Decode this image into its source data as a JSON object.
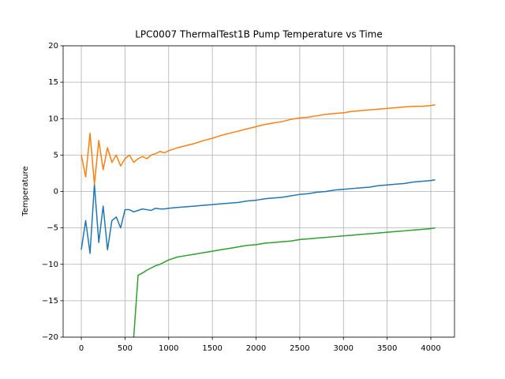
{
  "chart_data": {
    "type": "line",
    "title": "LPC0007 ThermalTest1B Pump Temperature vs Time",
    "y_label": "Temperature",
    "x": [
      0,
      50,
      100,
      150,
      200,
      250,
      300,
      350,
      400,
      450,
      500,
      550,
      600,
      650,
      700,
      750,
      800,
      850,
      900,
      950,
      1000,
      1100,
      1200,
      1300,
      1400,
      1500,
      1600,
      1700,
      1800,
      1900,
      2000,
      2100,
      2200,
      2300,
      2400,
      2500,
      2600,
      2700,
      2800,
      2900,
      3000,
      3100,
      3200,
      3300,
      3400,
      3500,
      3600,
      3700,
      3800,
      3900,
      4000,
      4050
    ],
    "series": [
      {
        "color": "#1f77b4",
        "values": [
          -8,
          -4,
          -8.5,
          1,
          -7,
          -2,
          -8,
          -4,
          -3.5,
          -5,
          -2.5,
          -2.5,
          -2.8,
          -2.6,
          -2.4,
          -2.5,
          -2.6,
          -2.3,
          -2.4,
          -2.4,
          -2.3,
          -2.2,
          -2.1,
          -2.0,
          -1.9,
          -1.8,
          -1.7,
          -1.6,
          -1.5,
          -1.3,
          -1.2,
          -1.0,
          -0.9,
          -0.8,
          -0.6,
          -0.4,
          -0.3,
          -0.1,
          0.0,
          0.2,
          0.3,
          0.4,
          0.5,
          0.6,
          0.8,
          0.9,
          1.0,
          1.1,
          1.3,
          1.4,
          1.5,
          1.6
        ]
      },
      {
        "color": "#ff7f0e",
        "values": [
          5,
          2,
          8,
          1,
          7,
          3,
          6,
          4,
          5,
          3.5,
          4.5,
          5,
          4,
          4.5,
          4.8,
          4.5,
          5,
          5.2,
          5.5,
          5.3,
          5.6,
          6.0,
          6.3,
          6.6,
          7.0,
          7.3,
          7.7,
          8.0,
          8.3,
          8.6,
          8.9,
          9.2,
          9.4,
          9.6,
          9.9,
          10.1,
          10.2,
          10.4,
          10.6,
          10.7,
          10.8,
          11.0,
          11.1,
          11.2,
          11.3,
          11.4,
          11.5,
          11.6,
          11.7,
          11.7,
          11.8,
          11.9
        ]
      },
      {
        "color": "#2ca02c",
        "values": [
          null,
          null,
          null,
          null,
          null,
          null,
          null,
          null,
          null,
          null,
          null,
          null,
          -20,
          -11.5,
          -11.2,
          -10.8,
          -10.5,
          -10.2,
          -10.0,
          -9.7,
          -9.4,
          -9.0,
          -8.8,
          -8.6,
          -8.4,
          -8.2,
          -8.0,
          -7.8,
          -7.6,
          -7.4,
          -7.3,
          -7.1,
          -7.0,
          -6.9,
          -6.8,
          -6.6,
          -6.5,
          -6.4,
          -6.3,
          -6.2,
          -6.1,
          -6.0,
          -5.9,
          -5.8,
          -5.7,
          -5.6,
          -5.5,
          -5.4,
          -5.3,
          -5.2,
          -5.1,
          -5.0
        ]
      }
    ],
    "xlim": [
      -208,
      4271
    ],
    "xticks": [
      0,
      500,
      1000,
      1500,
      2000,
      2500,
      3000,
      3500,
      4000
    ],
    "ylim": [
      -20,
      20
    ],
    "yticks": [
      {
        "value": -20,
        "label": "−20"
      },
      {
        "value": -15,
        "label": "−15"
      },
      {
        "value": -10,
        "label": "−10"
      },
      {
        "value": -5,
        "label": "−5"
      },
      0,
      5,
      10,
      15,
      20
    ],
    "grid": true
  }
}
